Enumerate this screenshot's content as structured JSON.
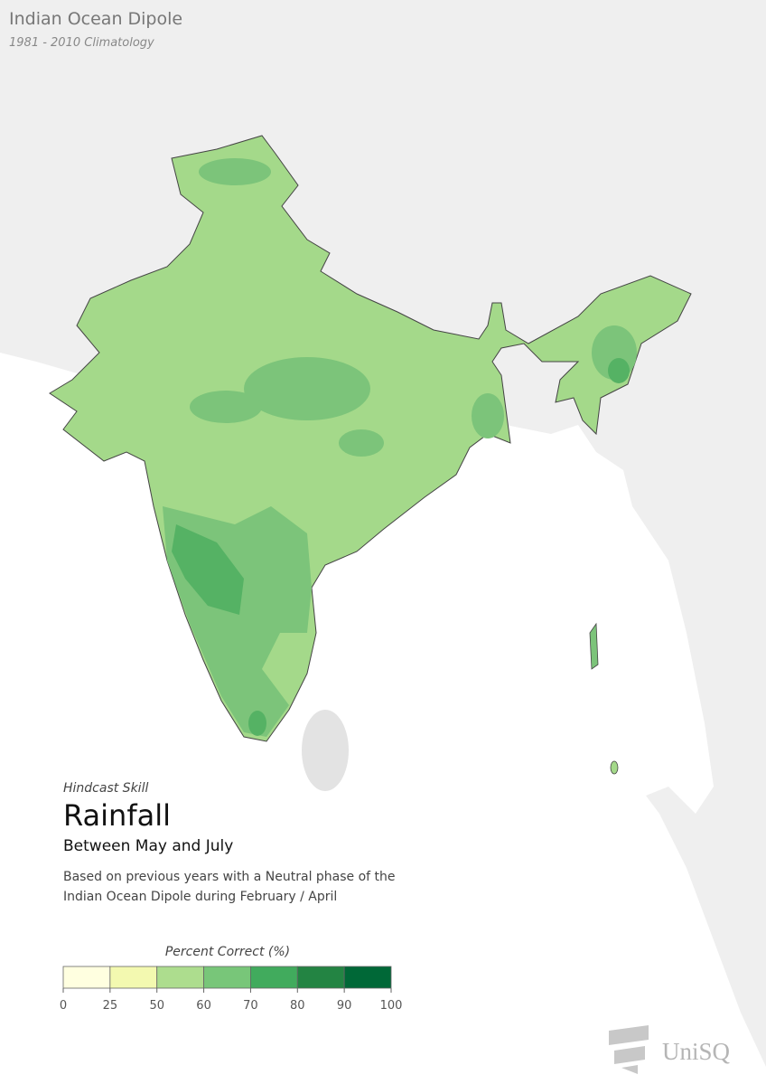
{
  "header": {
    "title": "Indian Ocean Dipole",
    "subtitle": "1981 - 2010 Climatology"
  },
  "panel": {
    "kicker": "Hindcast Skill",
    "variable": "Rainfall",
    "period": "Between May and July",
    "description": [
      "Based on previous years with a Neutral phase of the",
      "Indian Ocean Dipole during February / April"
    ]
  },
  "legend": {
    "title": "Percent Correct (%)",
    "ticks": [
      0,
      25,
      50,
      60,
      70,
      80,
      90,
      100
    ],
    "colors": [
      "#ffffe0",
      "#f3f9b0",
      "#addd8e",
      "#78c679",
      "#41ab5d",
      "#238443",
      "#006837"
    ]
  },
  "logo": {
    "text": "UniSQ"
  }
}
